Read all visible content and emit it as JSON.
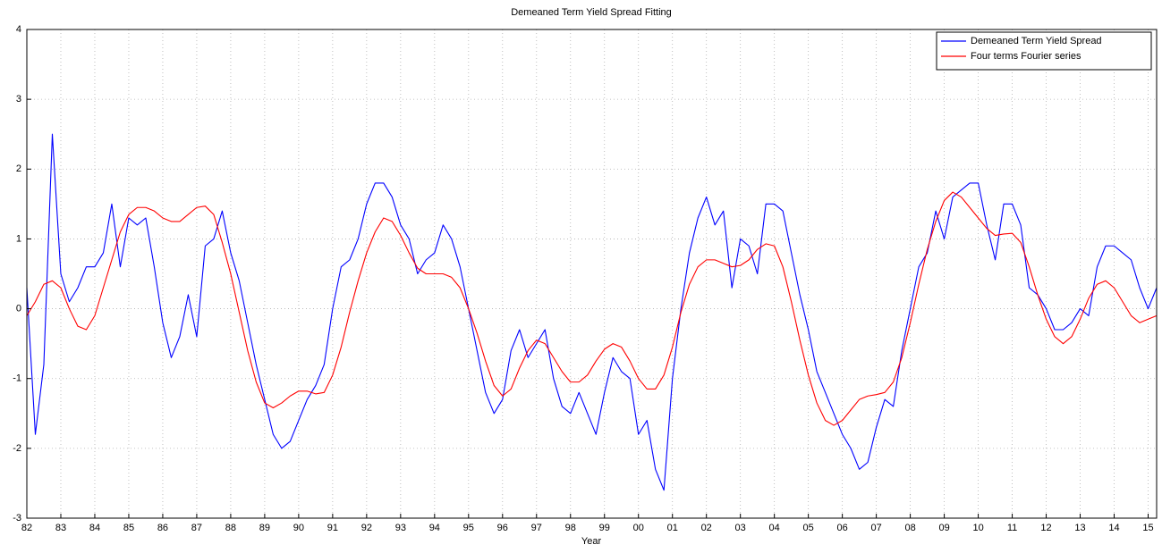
{
  "chart_data": {
    "type": "line",
    "title": "Demeaned Term Yield Spread Fitting",
    "x_label": "Year",
    "x": [
      1982,
      1982.25,
      1982.5,
      1982.75,
      1983,
      1983.25,
      1983.5,
      1983.75,
      1984,
      1984.25,
      1984.5,
      1984.75,
      1985,
      1985.25,
      1985.5,
      1985.75,
      1986,
      1986.25,
      1986.5,
      1986.75,
      1987,
      1987.25,
      1987.5,
      1987.75,
      1988,
      1988.25,
      1988.5,
      1988.75,
      1989,
      1989.25,
      1989.5,
      1989.75,
      1990,
      1990.25,
      1990.5,
      1990.75,
      1991,
      1991.25,
      1991.5,
      1991.75,
      1992,
      1992.25,
      1992.5,
      1992.75,
      1993,
      1993.25,
      1993.5,
      1993.75,
      1994,
      1994.25,
      1994.5,
      1994.75,
      1995,
      1995.25,
      1995.5,
      1995.75,
      1996,
      1996.25,
      1996.5,
      1996.75,
      1997,
      1997.25,
      1997.5,
      1997.75,
      1998,
      1998.25,
      1998.5,
      1998.75,
      1999,
      1999.25,
      1999.5,
      1999.75,
      2000,
      2000.25,
      2000.5,
      2000.75,
      2001,
      2001.25,
      2001.5,
      2001.75,
      2002,
      2002.25,
      2002.5,
      2002.75,
      2003,
      2003.25,
      2003.5,
      2003.75,
      2004,
      2004.25,
      2004.5,
      2004.75,
      2005,
      2005.25,
      2005.5,
      2005.75,
      2006,
      2006.25,
      2006.5,
      2006.75,
      2007,
      2007.25,
      2007.5,
      2007.75,
      2008,
      2008.25,
      2008.5,
      2008.75,
      2009,
      2009.25,
      2009.5,
      2009.75,
      2010,
      2010.25,
      2010.5,
      2010.75,
      2011,
      2011.25,
      2011.5,
      2011.75,
      2012,
      2012.25,
      2012.5,
      2012.75,
      2013,
      2013.25,
      2013.5,
      2013.75,
      2014,
      2014.25,
      2014.5,
      2014.75,
      2015,
      2015.25
    ],
    "series": [
      {
        "name": "Demeaned Term Yield Spread",
        "color": "#0000ff",
        "values": [
          0.3,
          -1.8,
          -0.8,
          2.5,
          0.5,
          0.1,
          0.3,
          0.6,
          0.6,
          0.8,
          1.5,
          0.6,
          1.3,
          1.2,
          1.3,
          0.6,
          -0.2,
          -0.7,
          -0.4,
          0.2,
          -0.4,
          0.9,
          1.0,
          1.4,
          0.8,
          0.4,
          -0.2,
          -0.8,
          -1.3,
          -1.8,
          -2.0,
          -1.9,
          -1.6,
          -1.3,
          -1.1,
          -0.8,
          0.0,
          0.6,
          0.7,
          1.0,
          1.5,
          1.8,
          1.8,
          1.6,
          1.2,
          1.0,
          0.5,
          0.7,
          0.8,
          1.2,
          1.0,
          0.6,
          0.0,
          -0.6,
          -1.2,
          -1.5,
          -1.3,
          -0.6,
          -0.3,
          -0.7,
          -0.5,
          -0.3,
          -1.0,
          -1.4,
          -1.5,
          -1.2,
          -1.5,
          -1.8,
          -1.2,
          -0.7,
          -0.9,
          -1.0,
          -1.8,
          -1.6,
          -2.3,
          -2.6,
          -1.0,
          0.0,
          0.8,
          1.3,
          1.6,
          1.2,
          1.4,
          0.3,
          1.0,
          0.9,
          0.5,
          1.5,
          1.5,
          1.4,
          0.8,
          0.2,
          -0.3,
          -0.9,
          -1.2,
          -1.5,
          -1.8,
          -2.0,
          -2.3,
          -2.2,
          -1.7,
          -1.3,
          -1.4,
          -0.6,
          0.0,
          0.6,
          0.8,
          1.4,
          1.0,
          1.6,
          1.7,
          1.8,
          1.8,
          1.2,
          0.7,
          1.5,
          1.5,
          1.2,
          0.3,
          0.2,
          0.0,
          -0.3,
          -0.3,
          -0.2,
          0.0,
          -0.1,
          0.6,
          0.9,
          0.9,
          0.8,
          0.7,
          0.3,
          0.0,
          0.3
        ]
      },
      {
        "name": "Four terms Fourier series",
        "color": "#ff0000",
        "values": [
          -0.1,
          0.1,
          0.35,
          0.4,
          0.3,
          0.0,
          -0.25,
          -0.3,
          -0.1,
          0.3,
          0.7,
          1.1,
          1.35,
          1.45,
          1.45,
          1.4,
          1.3,
          1.25,
          1.25,
          1.35,
          1.45,
          1.47,
          1.35,
          0.95,
          0.5,
          -0.05,
          -0.6,
          -1.05,
          -1.35,
          -1.42,
          -1.35,
          -1.25,
          -1.18,
          -1.18,
          -1.22,
          -1.2,
          -0.95,
          -0.55,
          -0.05,
          0.4,
          0.8,
          1.1,
          1.3,
          1.25,
          1.05,
          0.8,
          0.58,
          0.5,
          0.5,
          0.5,
          0.45,
          0.3,
          0.0,
          -0.35,
          -0.75,
          -1.1,
          -1.25,
          -1.15,
          -0.85,
          -0.6,
          -0.45,
          -0.5,
          -0.7,
          -0.9,
          -1.05,
          -1.05,
          -0.95,
          -0.75,
          -0.58,
          -0.5,
          -0.55,
          -0.75,
          -1.0,
          -1.15,
          -1.15,
          -0.95,
          -0.55,
          -0.05,
          0.35,
          0.6,
          0.7,
          0.7,
          0.65,
          0.6,
          0.62,
          0.7,
          0.85,
          0.93,
          0.9,
          0.6,
          0.1,
          -0.45,
          -0.95,
          -1.35,
          -1.6,
          -1.67,
          -1.6,
          -1.45,
          -1.3,
          -1.25,
          -1.23,
          -1.2,
          -1.05,
          -0.7,
          -0.2,
          0.35,
          0.85,
          1.25,
          1.55,
          1.67,
          1.6,
          1.45,
          1.3,
          1.15,
          1.05,
          1.07,
          1.08,
          0.95,
          0.6,
          0.2,
          -0.15,
          -0.4,
          -0.5,
          -0.4,
          -0.15,
          0.15,
          0.35,
          0.4,
          0.3,
          0.1,
          -0.1,
          -0.2,
          -0.15,
          -0.1
        ]
      }
    ],
    "xlim": [
      1982,
      2015.25
    ],
    "xticks": [
      {
        "value": 1982,
        "label": "82"
      },
      {
        "value": 1983,
        "label": "83"
      },
      {
        "value": 1984,
        "label": "84"
      },
      {
        "value": 1985,
        "label": "85"
      },
      {
        "value": 1986,
        "label": "86"
      },
      {
        "value": 1987,
        "label": "87"
      },
      {
        "value": 1988,
        "label": "88"
      },
      {
        "value": 1989,
        "label": "89"
      },
      {
        "value": 1990,
        "label": "90"
      },
      {
        "value": 1991,
        "label": "91"
      },
      {
        "value": 1992,
        "label": "92"
      },
      {
        "value": 1993,
        "label": "93"
      },
      {
        "value": 1994,
        "label": "94"
      },
      {
        "value": 1995,
        "label": "95"
      },
      {
        "value": 1996,
        "label": "96"
      },
      {
        "value": 1997,
        "label": "97"
      },
      {
        "value": 1998,
        "label": "98"
      },
      {
        "value": 1999,
        "label": "99"
      },
      {
        "value": 2000,
        "label": "00"
      },
      {
        "value": 2001,
        "label": "01"
      },
      {
        "value": 2002,
        "label": "02"
      },
      {
        "value": 2003,
        "label": "03"
      },
      {
        "value": 2004,
        "label": "04"
      },
      {
        "value": 2005,
        "label": "05"
      },
      {
        "value": 2006,
        "label": "06"
      },
      {
        "value": 2007,
        "label": "07"
      },
      {
        "value": 2008,
        "label": "08"
      },
      {
        "value": 2009,
        "label": "09"
      },
      {
        "value": 2010,
        "label": "10"
      },
      {
        "value": 2011,
        "label": "11"
      },
      {
        "value": 2012,
        "label": "12"
      },
      {
        "value": 2013,
        "label": "13"
      },
      {
        "value": 2014,
        "label": "14"
      },
      {
        "value": 2015,
        "label": "15"
      }
    ],
    "ylim": [
      -3,
      4
    ],
    "yticks": [
      -3,
      -2,
      -1,
      0,
      1,
      2,
      3,
      4
    ],
    "grid": true,
    "legend": "top-right"
  }
}
